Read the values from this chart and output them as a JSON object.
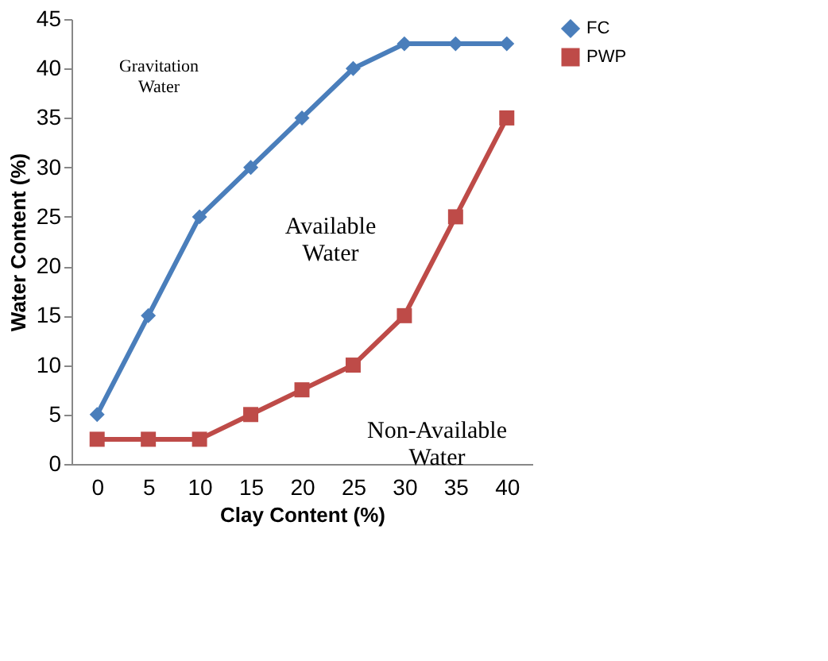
{
  "chart_data": {
    "type": "line",
    "xlabel": "Clay Content (%)",
    "ylabel": "Water Content (%)",
    "categories": [
      "0",
      "5",
      "10",
      "15",
      "20",
      "25",
      "30",
      "35",
      "40"
    ],
    "series": [
      {
        "name": "FC",
        "color": "#4a7ebb",
        "marker": "diamond",
        "values": [
          5,
          15,
          25,
          30,
          35,
          40,
          42.5,
          42.5,
          42.5
        ]
      },
      {
        "name": "PWP",
        "color": "#be4b48",
        "marker": "square",
        "values": [
          2.5,
          2.5,
          2.5,
          5,
          7.5,
          10,
          15,
          25,
          35
        ]
      }
    ],
    "ylim": [
      0,
      45
    ],
    "yticks": [
      0,
      5,
      10,
      15,
      20,
      25,
      30,
      35,
      40,
      45
    ],
    "grid": false,
    "legend": "right",
    "annotations": [
      "Gravitation Water",
      "Available Water",
      "Non-Available Water"
    ]
  }
}
